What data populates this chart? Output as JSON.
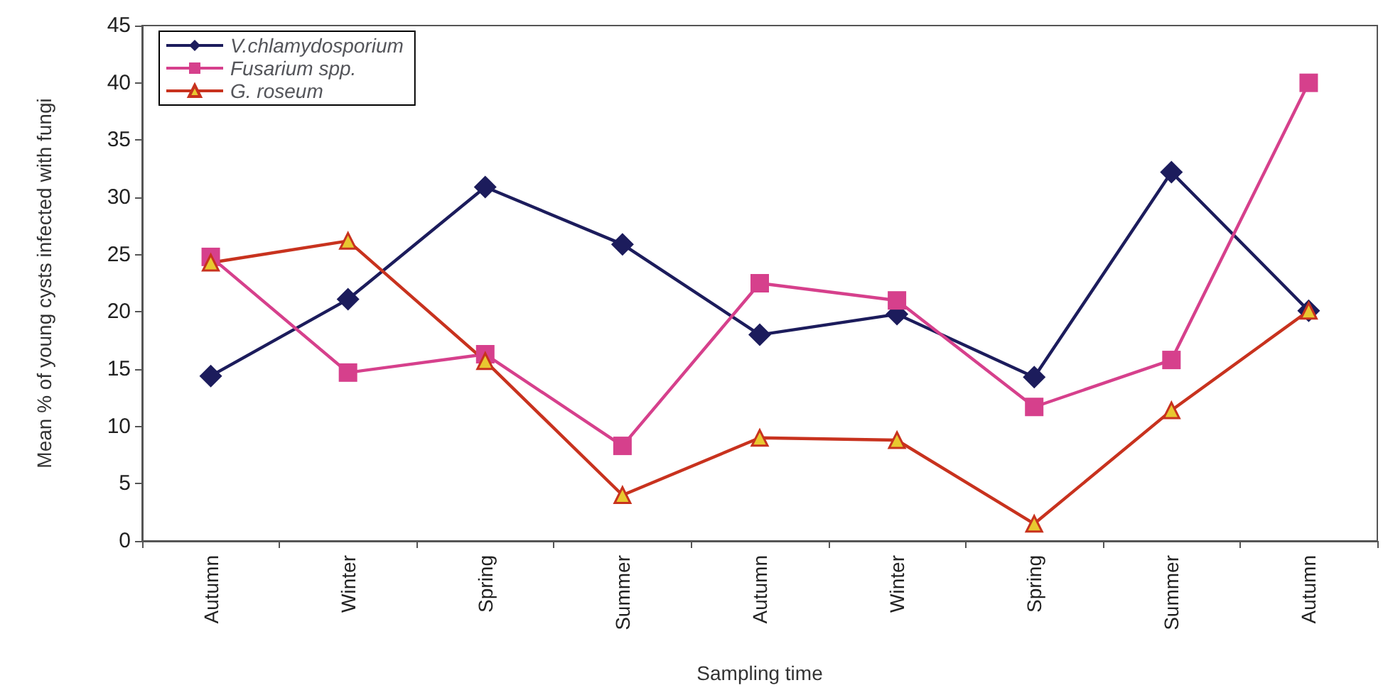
{
  "chart_data": {
    "type": "line",
    "xlabel": "Sampling time",
    "ylabel": "Mean % of young cysts infected with fungi",
    "categories": [
      "Autumn",
      "Winter",
      "Spring",
      "Summer",
      "Autumn",
      "Winter",
      "Spring",
      "Summer",
      "Autumn"
    ],
    "series": [
      {
        "name": "V.chlamydosporium",
        "color": "#1c1c5c",
        "marker": "diamond",
        "values": [
          14.4,
          21.1,
          30.9,
          25.9,
          18.0,
          19.8,
          14.3,
          32.2,
          20.1
        ]
      },
      {
        "name": "Fusarium spp.",
        "color": "#d6408c",
        "marker": "square",
        "values": [
          24.8,
          14.7,
          16.3,
          8.3,
          22.5,
          21.0,
          11.7,
          15.8,
          40
        ]
      },
      {
        "name": "G. roseum",
        "color": "#c8321e",
        "marker": "triangle",
        "values": [
          24.3,
          26.2,
          15.7,
          4.0,
          9.0,
          8.8,
          1.5,
          11.4,
          20.1
        ]
      }
    ],
    "ylim": [
      0,
      45
    ],
    "yticks": [
      0,
      5,
      10,
      15,
      20,
      25,
      30,
      35,
      40,
      45
    ],
    "grid": false,
    "legend": "top left"
  }
}
